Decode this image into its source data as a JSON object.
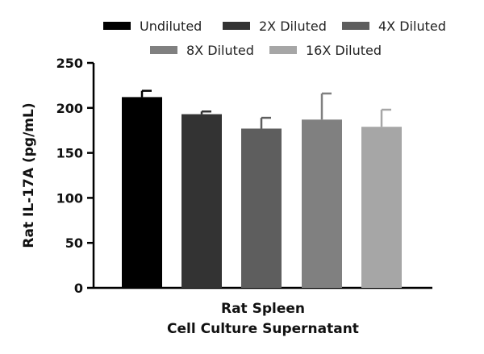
{
  "chart_data": {
    "type": "bar",
    "ylabel": "Rat IL-17A (pg/mL)",
    "xlabel": [
      "Rat Spleen",
      "Cell Culture Supernatant"
    ],
    "ylim": [
      0,
      250
    ],
    "yticks": [
      0,
      50,
      100,
      150,
      200,
      250
    ],
    "legend_position": "top",
    "series": [
      {
        "name": "Undiluted",
        "value": 212,
        "error": 7,
        "color": "#000000"
      },
      {
        "name": "2X Diluted",
        "value": 193,
        "error": 3,
        "color": "#333333"
      },
      {
        "name": "4X Diluted",
        "value": 177,
        "error": 12,
        "color": "#5e5e5e"
      },
      {
        "name": "8X Diluted",
        "value": 187,
        "error": 29,
        "color": "#808080"
      },
      {
        "name": "16X Diluted",
        "value": 179,
        "error": 19,
        "color": "#a6a6a6"
      }
    ]
  }
}
